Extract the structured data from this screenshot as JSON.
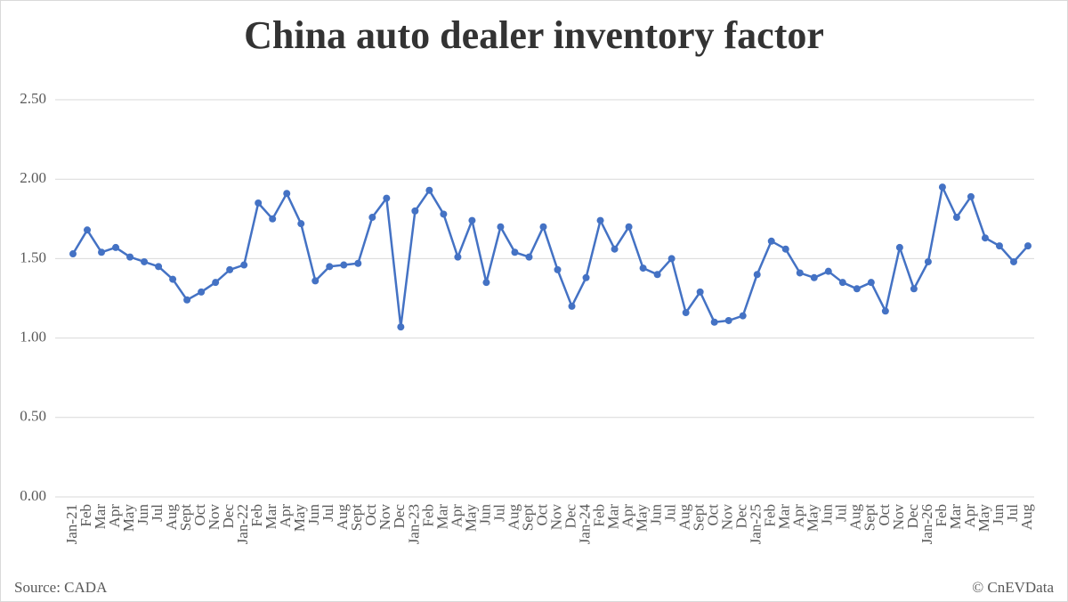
{
  "chart_data": {
    "type": "line",
    "title": "China auto dealer inventory factor",
    "source": "Source: CADA",
    "credit": "© CnEVData",
    "categories": [
      "Jan-21",
      "Feb",
      "Mar",
      "Apr",
      "May",
      "Jun",
      "Jul",
      "Aug",
      "Sept",
      "Oct",
      "Nov",
      "Dec",
      "Jan-22",
      "Feb",
      "Mar",
      "Apr",
      "May",
      "Jun",
      "Jul",
      "Aug",
      "Sept",
      "Oct",
      "Nov",
      "Dec",
      "Jan-23",
      "Feb",
      "Mar",
      "Apr",
      "May",
      "Jun",
      "Jul",
      "Aug",
      "Sept",
      "Oct",
      "Nov",
      "Dec",
      "Jan-24",
      "Feb",
      "Mar",
      "Apr",
      "May",
      "Jun",
      "Jul",
      "Aug",
      "Sept",
      "Oct",
      "Nov",
      "Dec",
      "Jan-25",
      "Feb",
      "Mar",
      "Apr",
      "May",
      "Jun",
      "Jul",
      "Aug",
      "Sept",
      "Oct",
      "Nov",
      "Dec",
      "Jan-26",
      "Feb",
      "Mar",
      "Apr",
      "May",
      "Jun",
      "Jul",
      "Aug"
    ],
    "values": [
      1.53,
      1.68,
      1.54,
      1.57,
      1.51,
      1.48,
      1.45,
      1.37,
      1.24,
      1.29,
      1.35,
      1.43,
      1.46,
      1.85,
      1.75,
      1.91,
      1.72,
      1.36,
      1.45,
      1.46,
      1.47,
      1.76,
      1.88,
      1.07,
      1.8,
      1.93,
      1.78,
      1.51,
      1.74,
      1.35,
      1.7,
      1.54,
      1.51,
      1.7,
      1.43,
      1.2,
      1.38,
      1.74,
      1.56,
      1.7,
      1.44,
      1.4,
      1.5,
      1.16,
      1.29,
      1.1,
      1.11,
      1.14,
      1.4,
      1.61,
      1.56,
      1.41,
      1.38,
      1.42,
      1.35,
      1.31,
      1.35,
      1.17,
      1.57,
      1.31,
      1.48,
      1.95,
      1.76,
      1.89,
      1.63,
      1.58,
      1.48,
      1.58
    ],
    "color": "#4472c4",
    "ylim": [
      0,
      2.5
    ],
    "yticks": [
      {
        "value": 0,
        "label": "0.00"
      },
      {
        "value": 0.5,
        "label": "0.50"
      },
      {
        "value": 1,
        "label": "1.00"
      },
      {
        "value": 1.5,
        "label": "1.50"
      },
      {
        "value": 2,
        "label": "2.00"
      },
      {
        "value": 2.5,
        "label": "2.50"
      }
    ],
    "grid": true
  }
}
